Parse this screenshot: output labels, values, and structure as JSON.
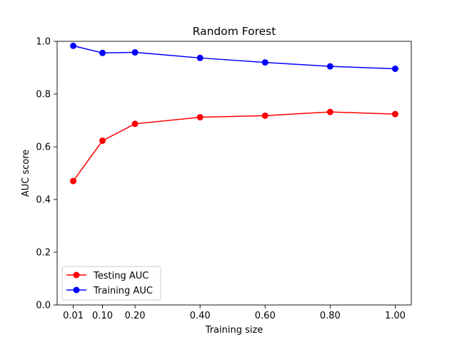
{
  "chart_data": {
    "type": "line",
    "title": "Random Forest",
    "xlabel": "Training size",
    "ylabel": "AUC score",
    "x": [
      0.01,
      0.1,
      0.2,
      0.4,
      0.6,
      0.8,
      1.0
    ],
    "x_tick_labels": [
      "0.01",
      "0.10",
      "0.20",
      "0.40",
      "0.60",
      "0.80",
      "1.00"
    ],
    "xlim": [
      -0.0395,
      1.0495
    ],
    "ylim": [
      0.0,
      1.0
    ],
    "y_ticks": [
      0.0,
      0.2,
      0.4,
      0.6,
      0.8,
      1.0
    ],
    "y_tick_labels": [
      "0.0",
      "0.2",
      "0.4",
      "0.6",
      "0.8",
      "1.0"
    ],
    "grid": false,
    "legend_position": "lower-left",
    "series": [
      {
        "name": "Testing AUC",
        "color": "#ff0000",
        "marker": "circle",
        "values": [
          0.47,
          0.623,
          0.687,
          0.712,
          0.718,
          0.732,
          0.724
        ]
      },
      {
        "name": "Training AUC",
        "color": "#0000ff",
        "marker": "circle",
        "values": [
          0.983,
          0.956,
          0.958,
          0.937,
          0.92,
          0.905,
          0.896
        ]
      }
    ]
  }
}
